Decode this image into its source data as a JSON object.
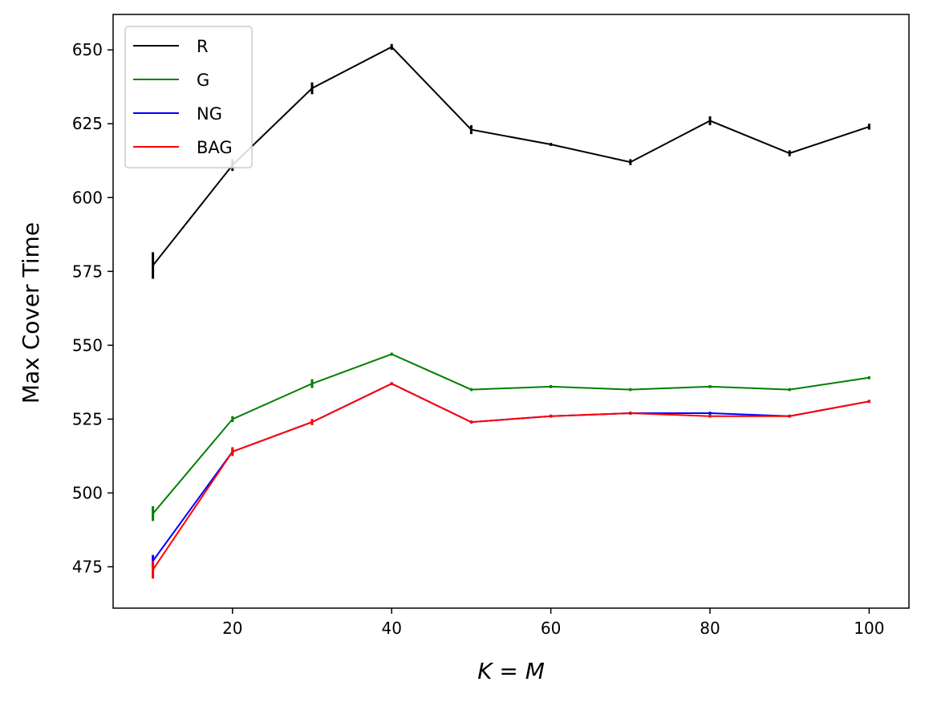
{
  "chart_data": {
    "type": "line",
    "xlabel": "K = M",
    "ylabel": "Max Cover Time",
    "xlim": [
      5,
      105
    ],
    "ylim": [
      461,
      662
    ],
    "xticks": [
      20,
      40,
      60,
      80,
      100
    ],
    "yticks": [
      475,
      500,
      525,
      550,
      575,
      600,
      625,
      650
    ],
    "x": [
      10,
      20,
      30,
      40,
      50,
      60,
      70,
      80,
      90,
      100
    ],
    "legend_position": "top-left",
    "grid": false,
    "series": [
      {
        "name": "R",
        "color": "#000000",
        "values": [
          577,
          611,
          637,
          651,
          623,
          618,
          612,
          626,
          615,
          624
        ],
        "errors": [
          4.5,
          2,
          2,
          1,
          1.5,
          0.5,
          1,
          1.5,
          1,
          1
        ]
      },
      {
        "name": "G",
        "color": "#008000",
        "values": [
          493,
          525,
          537,
          547,
          535,
          536,
          535,
          536,
          535,
          539
        ],
        "errors": [
          2.5,
          1,
          1.5,
          0,
          0.5,
          0,
          0,
          0,
          0,
          0
        ]
      },
      {
        "name": "NG",
        "color": "#0000ff",
        "values": [
          477,
          514,
          524,
          537,
          524,
          526,
          527,
          527,
          526,
          531
        ],
        "errors": [
          2,
          1,
          1,
          0,
          0.5,
          0,
          0,
          0,
          0,
          0
        ]
      },
      {
        "name": "BAG",
        "color": "#ff0000",
        "values": [
          474,
          514,
          524,
          537,
          524,
          526,
          527,
          526,
          526,
          531
        ],
        "errors": [
          3,
          1.5,
          1,
          0,
          0.5,
          0,
          0,
          0,
          0,
          0
        ]
      }
    ]
  }
}
